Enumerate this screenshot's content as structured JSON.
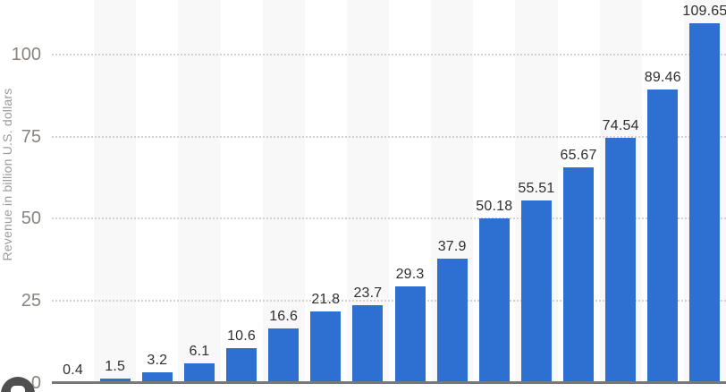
{
  "chart_data": {
    "type": "bar",
    "ylabel": "Revenue in billion U.S. dollars",
    "values": [
      0.4,
      1.5,
      3.2,
      6.1,
      10.6,
      16.6,
      21.8,
      23.7,
      29.3,
      37.9,
      50.18,
      55.51,
      65.67,
      74.54,
      89.46,
      109.65
    ],
    "bar_labels": [
      "0.4",
      "1.5",
      "3.2",
      "6.1",
      "10.6",
      "16.6",
      "21.8",
      "23.7",
      "29.3",
      "37.9",
      "50.18",
      "55.51",
      "65.67",
      "74.54",
      "89.46",
      "109.65"
    ],
    "ytick_labels": [
      "0",
      "25",
      "50",
      "75",
      "100"
    ],
    "ytick_values": [
      0,
      25,
      50,
      75,
      100
    ],
    "ylim": [
      0,
      116.6
    ],
    "grid": "horizontal-dotted",
    "legend": "none",
    "plot_background": "alternating-vertical-bands"
  },
  "colors": {
    "bar": "#2e70d2",
    "band": "#f8f8f8",
    "grid": "#d4d2d0",
    "axis": "#787878",
    "tick_text": "#8a8480",
    "value_text": "#2f2f2f",
    "ylabel_text": "#9b9b9b",
    "badge": "#4f4f4f"
  },
  "badge": {
    "icon": "camera-icon"
  }
}
